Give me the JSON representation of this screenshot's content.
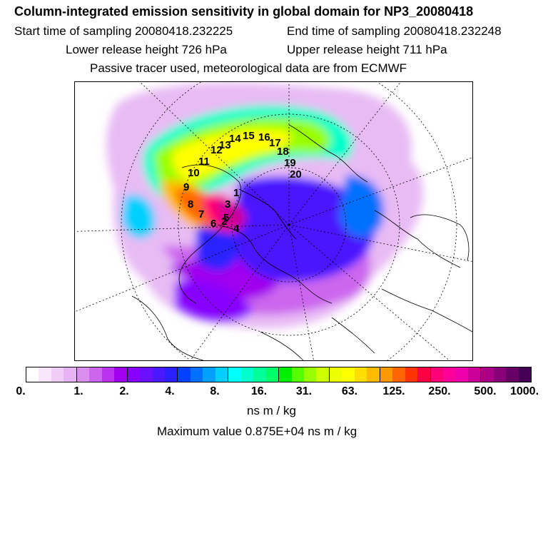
{
  "header": {
    "title": "Column-integrated emission sensitivity in global domain for NP3_20080418",
    "start": "Start time of sampling 20080418.232225",
    "end": "End time of sampling 20080418.232248",
    "lower": "Lower release height  726 hPa",
    "upper": "Upper release height  711 hPa",
    "tracer": "Passive tracer used, meteorological data are from ECMWF"
  },
  "map": {
    "trajectory_labels": [
      "1",
      "2",
      "3",
      "4",
      "5",
      "6",
      "7",
      "8",
      "9",
      "10",
      "11",
      "12",
      "13",
      "14",
      "15",
      "16",
      "17",
      "18",
      "19",
      "20"
    ]
  },
  "colorbar": {
    "ticks": [
      "0.",
      "1.",
      "2.",
      "4.",
      "8.",
      "16.",
      "31.",
      "63.",
      "125.",
      "250.",
      "500.",
      "1000."
    ],
    "units": "ns m / kg",
    "colors": [
      "#ffffff",
      "#f7e6fb",
      "#efcdf7",
      "#e6b4f3",
      "#d98ef0",
      "#cc66ee",
      "#bb33ee",
      "#a000ee",
      "#8800ff",
      "#6a10ff",
      "#4a18ff",
      "#2a20ff",
      "#0040ff",
      "#0070ff",
      "#00a0ff",
      "#00d0ff",
      "#00ffff",
      "#00ffcc",
      "#00ff99",
      "#00ff66",
      "#00ee00",
      "#55ff00",
      "#99ff00",
      "#ccff00",
      "#eeff00",
      "#ffff00",
      "#ffdd00",
      "#ffbb00",
      "#ff9900",
      "#ff6600",
      "#ff3300",
      "#ff0044",
      "#ff0077",
      "#ff0099",
      "#ee00aa",
      "#cc0099",
      "#aa0088",
      "#880077",
      "#660066",
      "#440055"
    ]
  },
  "max_value": "Maximum value  0.875E+04 ns m / kg"
}
